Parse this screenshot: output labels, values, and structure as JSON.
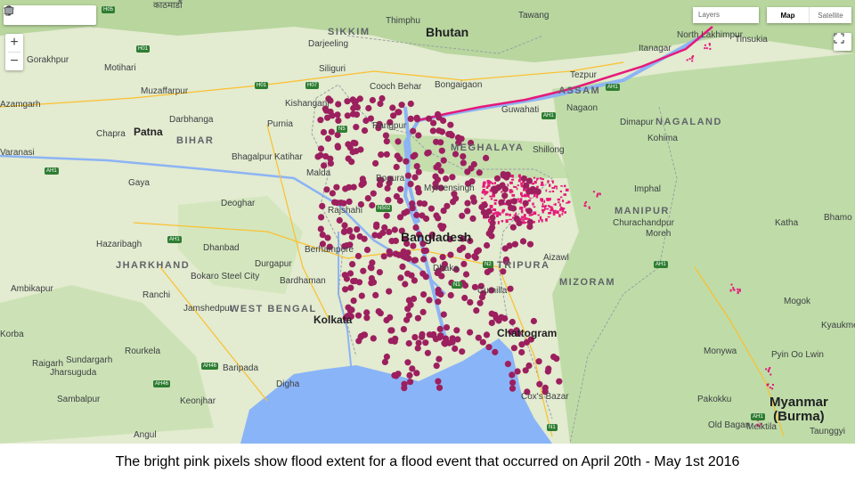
{
  "map": {
    "controls": {
      "layers_label": "Layers",
      "map_type_options": [
        "Map",
        "Satellite"
      ],
      "selected_map_type": "Map",
      "zoom_in": "+",
      "zoom_out": "−",
      "tools": [
        "hand-icon",
        "marker-icon",
        "line-icon",
        "polygon-icon",
        "rectangle-icon"
      ]
    },
    "countries": {
      "bangladesh": "Bangladesh",
      "bhutan": "Bhutan",
      "myanmar": "Myanmar",
      "burma": "(Burma)"
    },
    "regions": {
      "sikkim": "SIKKIM",
      "assam": "ASSAM",
      "nagaland": "NAGALAND",
      "meghalaya": "MEGHALAYA",
      "manipur": "MANIPUR",
      "tripura": "TRIPURA",
      "mizoram": "MIZORAM",
      "bihar": "BIHAR",
      "jharkhand": "JHARKHAND",
      "west_bengal": "WEST BENGAL"
    },
    "cities": {
      "kathmandu": "काठमाडौं",
      "thimphu": "Thimphu",
      "tawang": "Tawang",
      "north_lakhimpur": "North Lakhimpur",
      "tinsukia": "Tinsukia",
      "itanagar": "Itanagar",
      "darjeeling": "Darjeeling",
      "siliguri": "Siliguri",
      "gorakhpur": "Gorakhpur",
      "motihari": "Motihari",
      "muzaffarpur": "Muzaffarpur",
      "azamgarh": "Azamgarh",
      "darbhanga": "Darbhanga",
      "kishanganj": "Kishanganj",
      "cooch_behar": "Cooch Behar",
      "bongaigaon": "Bongaigaon",
      "tezpur": "Tezpur",
      "guwahati": "Guwahati",
      "nagaon": "Nagaon",
      "dimapur": "Dimapur",
      "kohima": "Kohima",
      "chapra": "Chapra",
      "patna": "Patna",
      "purnia": "Purnia",
      "rangpur": "Rangpur",
      "shillong": "Shillong",
      "varanasi": "Varanasi",
      "bhagalpur": "Bhagalpur",
      "katihar": "Katihar",
      "malda": "Malda",
      "bogura": "Bogura",
      "mymensingh": "Mymensingh",
      "imphal": "Imphal",
      "gaya": "Gaya",
      "deoghar": "Deoghar",
      "rajshahi": "Rajshahi",
      "churachandpur": "Churachandpur",
      "moreh": "Moreh",
      "katha": "Katha",
      "bhamo": "Bhamo",
      "hazaribagh": "Hazaribagh",
      "dhanbad": "Dhanbad",
      "berhampore": "Berhampore",
      "dhaka": "Dhaka",
      "aizawl": "Aizawl",
      "ranchi": "Ranchi",
      "bokaro": "Bokaro Steel City",
      "durgapur": "Durgapur",
      "bardhaman": "Bardhaman",
      "comilla": "Cumilla",
      "ambikapur": "Ambikapur",
      "jamshedpur": "Jamshedpur",
      "kolkata": "Kolkata",
      "chattogram": "Chattogram",
      "mogok": "Mogok",
      "kyaukme": "Kyaukme",
      "rourkela": "Rourkela",
      "monywa": "Monywa",
      "pyin_oo_lwin": "Pyin Oo Lwin",
      "sundargarh": "Sundargarh",
      "raigarh": "Raigarh",
      "jharsuguda": "Jharsuguda",
      "baripada": "Baripada",
      "digha": "Digha",
      "coxs_bazar": "Cox's Bazar",
      "sambalpur": "Sambalpur",
      "keonjhar": "Keonjhar",
      "pakokku": "Pakokku",
      "old_bagan": "Old Bagan",
      "meiktila": "Meiktila",
      "taunggyi": "Taunggyi",
      "angul": "Angul",
      "korba": "Korba"
    },
    "highways": [
      "H05",
      "H01",
      "H01",
      "H07",
      "AH1",
      "AH1",
      "AH1",
      "N5",
      "N502",
      "AH1",
      "N2",
      "N1",
      "AH1",
      "AH46",
      "AH46",
      "AH1",
      "N1"
    ],
    "colors": {
      "flood_pink": "#e6197a",
      "flood_point": "#9c1f5e",
      "river": "#8cb4f5",
      "sea": "#8ab4f8",
      "land": "#e6edd3",
      "forest": "#a8d08d"
    }
  },
  "caption": "The bright pink pixels show flood extent for a flood event that occurred on April 20th - May 1st 2016"
}
